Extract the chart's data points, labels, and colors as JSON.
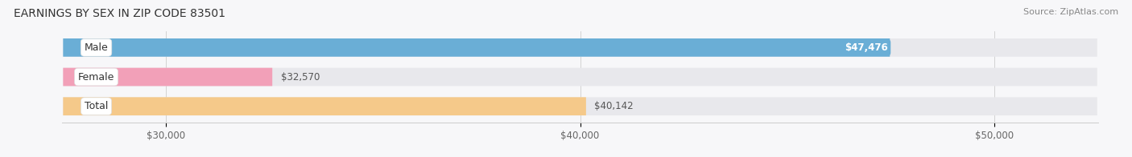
{
  "title": "EARNINGS BY SEX IN ZIP CODE 83501",
  "source": "Source: ZipAtlas.com",
  "categories": [
    "Male",
    "Female",
    "Total"
  ],
  "values": [
    47476,
    32570,
    40142
  ],
  "bar_colors": [
    "#6aaed6",
    "#f2a0b8",
    "#f5c98a"
  ],
  "bar_bg_color": "#e8e8ec",
  "value_labels": [
    "$47,476",
    "$32,570",
    "$40,142"
  ],
  "value_label_colors": [
    "#ffffff",
    "#666666",
    "#666666"
  ],
  "value_badge_colors": [
    "#6aaed6",
    null,
    null
  ],
  "xlim_min": 27500,
  "xlim_max": 52500,
  "x_ticks": [
    30000,
    40000,
    50000
  ],
  "x_tick_labels": [
    "$30,000",
    "$40,000",
    "$50,000"
  ],
  "background_color": "#f7f7f9",
  "title_fontsize": 10,
  "source_fontsize": 8,
  "label_fontsize": 9,
  "value_fontsize": 8.5
}
